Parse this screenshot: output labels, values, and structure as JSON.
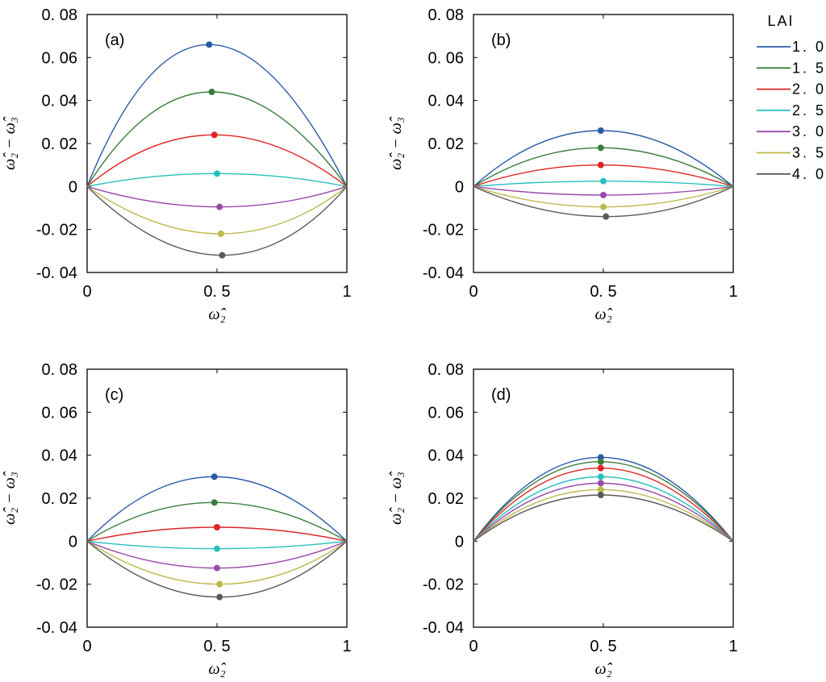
{
  "legend": {
    "title": "LAI",
    "entries": [
      "1. 0",
      "1. 5",
      "2. 0",
      "2. 5",
      "3. 0",
      "3. 5",
      "4. 0"
    ]
  },
  "axes": {
    "xlabel": "ω̂₂",
    "ylabel": "ω̂₂ − ω̂₃",
    "x_tick_labels": [
      "0",
      "0. 5",
      "1"
    ],
    "y_tick_labels": [
      "0. 08",
      "0. 06",
      "0. 04",
      "0. 02",
      "0",
      "-0. 02",
      "-0. 04"
    ]
  },
  "series_colors": [
    "#2a5ba8",
    "#3a7d3a",
    "#e02424",
    "#26c0c0",
    "#9a4aaa",
    "#bdb848",
    "#5a5a5a"
  ],
  "chart_data": [
    {
      "type": "line",
      "panel_label": "(a)",
      "xlim": [
        0,
        1
      ],
      "ylim": [
        -0.04,
        0.08
      ],
      "grid": false,
      "legend_position": "right",
      "series": [
        {
          "name": "1. 0",
          "x": [
            0,
            0.47,
            1
          ],
          "y": [
            0,
            0.066,
            0
          ],
          "peak": [
            0.47,
            0.066
          ]
        },
        {
          "name": "1. 5",
          "x": [
            0,
            0.48,
            1
          ],
          "y": [
            0,
            0.044,
            0
          ],
          "peak": [
            0.48,
            0.044
          ]
        },
        {
          "name": "2. 0",
          "x": [
            0,
            0.49,
            1
          ],
          "y": [
            0,
            0.024,
            0
          ],
          "peak": [
            0.49,
            0.024
          ]
        },
        {
          "name": "2. 5",
          "x": [
            0,
            0.5,
            1
          ],
          "y": [
            0,
            0.006,
            0
          ],
          "peak": [
            0.5,
            0.006
          ]
        },
        {
          "name": "3. 0",
          "x": [
            0,
            0.51,
            1
          ],
          "y": [
            0,
            -0.0095,
            0
          ],
          "peak": [
            0.51,
            -0.0095
          ]
        },
        {
          "name": "3. 5",
          "x": [
            0,
            0.515,
            1
          ],
          "y": [
            0,
            -0.022,
            0
          ],
          "peak": [
            0.515,
            -0.022
          ]
        },
        {
          "name": "4. 0",
          "x": [
            0,
            0.52,
            1
          ],
          "y": [
            0,
            -0.032,
            0
          ],
          "peak": [
            0.52,
            -0.032
          ]
        }
      ]
    },
    {
      "type": "line",
      "panel_label": "(b)",
      "xlim": [
        0,
        1
      ],
      "ylim": [
        -0.04,
        0.08
      ],
      "grid": false,
      "series": [
        {
          "name": "1. 0",
          "x": [
            0,
            0.49,
            1
          ],
          "y": [
            0,
            0.026,
            0
          ],
          "peak": [
            0.49,
            0.026
          ]
        },
        {
          "name": "1. 5",
          "x": [
            0,
            0.49,
            1
          ],
          "y": [
            0,
            0.018,
            0
          ],
          "peak": [
            0.49,
            0.018
          ]
        },
        {
          "name": "2. 0",
          "x": [
            0,
            0.49,
            1
          ],
          "y": [
            0,
            0.01,
            0
          ],
          "peak": [
            0.49,
            0.01
          ]
        },
        {
          "name": "2. 5",
          "x": [
            0,
            0.5,
            1
          ],
          "y": [
            0,
            0.0025,
            0
          ],
          "peak": [
            0.5,
            0.0025
          ]
        },
        {
          "name": "3. 0",
          "x": [
            0,
            0.5,
            1
          ],
          "y": [
            0,
            -0.004,
            0
          ],
          "peak": [
            0.5,
            -0.004
          ]
        },
        {
          "name": "3. 5",
          "x": [
            0,
            0.5,
            1
          ],
          "y": [
            0,
            -0.0095,
            0
          ],
          "peak": [
            0.5,
            -0.0095
          ]
        },
        {
          "name": "4. 0",
          "x": [
            0,
            0.51,
            1
          ],
          "y": [
            0,
            -0.014,
            0
          ],
          "peak": [
            0.51,
            -0.014
          ]
        }
      ]
    },
    {
      "type": "line",
      "panel_label": "(c)",
      "xlim": [
        0,
        1
      ],
      "ylim": [
        -0.04,
        0.08
      ],
      "grid": false,
      "series": [
        {
          "name": "1. 0",
          "x": [
            0,
            0.49,
            1
          ],
          "y": [
            0,
            0.03,
            0
          ],
          "peak": [
            0.49,
            0.03
          ]
        },
        {
          "name": "1. 5",
          "x": [
            0,
            0.49,
            1
          ],
          "y": [
            0,
            0.018,
            0
          ],
          "peak": [
            0.49,
            0.018
          ]
        },
        {
          "name": "2. 0",
          "x": [
            0,
            0.5,
            1
          ],
          "y": [
            0,
            0.0065,
            0
          ],
          "peak": [
            0.5,
            0.0065
          ]
        },
        {
          "name": "2. 5",
          "x": [
            0,
            0.5,
            1
          ],
          "y": [
            0,
            -0.0035,
            0
          ],
          "peak": [
            0.5,
            -0.0035
          ]
        },
        {
          "name": "3. 0",
          "x": [
            0,
            0.5,
            1
          ],
          "y": [
            0,
            -0.0125,
            0
          ],
          "peak": [
            0.5,
            -0.0125
          ]
        },
        {
          "name": "3. 5",
          "x": [
            0,
            0.51,
            1
          ],
          "y": [
            0,
            -0.02,
            0
          ],
          "peak": [
            0.51,
            -0.02
          ]
        },
        {
          "name": "4. 0",
          "x": [
            0,
            0.51,
            1
          ],
          "y": [
            0,
            -0.026,
            0
          ],
          "peak": [
            0.51,
            -0.026
          ]
        }
      ]
    },
    {
      "type": "line",
      "panel_label": "(d)",
      "xlim": [
        0,
        1
      ],
      "ylim": [
        -0.04,
        0.08
      ],
      "grid": false,
      "series": [
        {
          "name": "1. 0",
          "x": [
            0,
            0.49,
            1
          ],
          "y": [
            0,
            0.039,
            0
          ],
          "peak": [
            0.49,
            0.039
          ]
        },
        {
          "name": "1. 5",
          "x": [
            0,
            0.49,
            1
          ],
          "y": [
            0,
            0.037,
            0
          ],
          "peak": [
            0.49,
            0.037
          ]
        },
        {
          "name": "2. 0",
          "x": [
            0,
            0.49,
            1
          ],
          "y": [
            0,
            0.034,
            0
          ],
          "peak": [
            0.49,
            0.034
          ]
        },
        {
          "name": "2. 5",
          "x": [
            0,
            0.49,
            1
          ],
          "y": [
            0,
            0.03,
            0
          ],
          "peak": [
            0.49,
            0.03
          ]
        },
        {
          "name": "3. 0",
          "x": [
            0,
            0.49,
            1
          ],
          "y": [
            0,
            0.027,
            0
          ],
          "peak": [
            0.49,
            0.027
          ]
        },
        {
          "name": "3. 5",
          "x": [
            0,
            0.49,
            1
          ],
          "y": [
            0,
            0.024,
            0
          ],
          "peak": [
            0.49,
            0.024
          ]
        },
        {
          "name": "4. 0",
          "x": [
            0,
            0.49,
            1
          ],
          "y": [
            0,
            0.0215,
            0
          ],
          "peak": [
            0.49,
            0.0215
          ]
        }
      ]
    }
  ]
}
